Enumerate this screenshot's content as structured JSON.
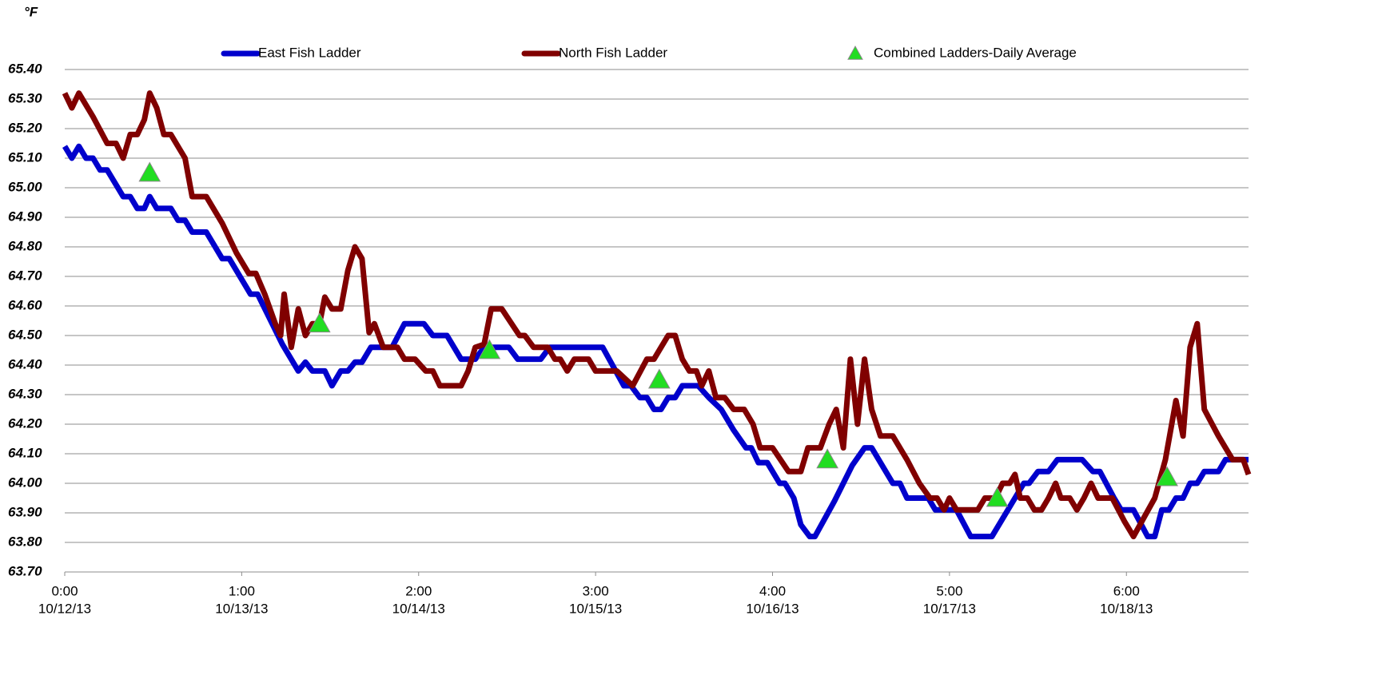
{
  "chart_data": {
    "type": "line",
    "unit_label": "°F",
    "xlim": [
      0,
      6.69
    ],
    "ylim": [
      63.7,
      65.4
    ],
    "grid": true,
    "legend": "top",
    "xticks": [
      {
        "value": 0,
        "label": "0:00"
      },
      {
        "value": 1,
        "label": "1:00"
      },
      {
        "value": 2,
        "label": "2:00"
      },
      {
        "value": 3,
        "label": "3:00"
      },
      {
        "value": 4,
        "label": "4:00"
      },
      {
        "value": 5,
        "label": "5:00"
      },
      {
        "value": 6,
        "label": "6:00"
      }
    ],
    "xtick_dates": [
      "10/12/13",
      "10/13/13",
      "10/14/13",
      "10/15/13",
      "10/16/13",
      "10/17/13",
      "10/18/13"
    ],
    "yticks": [
      {
        "value": 63.7,
        "label": "63.70"
      },
      {
        "value": 63.8,
        "label": "63.80"
      },
      {
        "value": 63.9,
        "label": "63.90"
      },
      {
        "value": 64.0,
        "label": "64.00"
      },
      {
        "value": 64.1,
        "label": "64.10"
      },
      {
        "value": 64.2,
        "label": "64.20"
      },
      {
        "value": 64.3,
        "label": "64.30"
      },
      {
        "value": 64.4,
        "label": "64.40"
      },
      {
        "value": 64.5,
        "label": "64.50"
      },
      {
        "value": 64.6,
        "label": "64.60"
      },
      {
        "value": 64.7,
        "label": "64.70"
      },
      {
        "value": 64.8,
        "label": "64.80"
      },
      {
        "value": 64.9,
        "label": "64.90"
      },
      {
        "value": 65.0,
        "label": "65.00"
      },
      {
        "value": 65.1,
        "label": "65.10"
      },
      {
        "value": 65.2,
        "label": "65.20"
      },
      {
        "value": 65.3,
        "label": "65.30"
      },
      {
        "value": 65.4,
        "label": "65.40"
      }
    ],
    "series": [
      {
        "name": "East Fish Ladder",
        "color": "#0000cc",
        "kind": "line",
        "x": [
          0,
          0.04,
          0.08,
          0.12,
          0.16,
          0.2,
          0.24,
          0.33,
          0.37,
          0.41,
          0.45,
          0.48,
          0.52,
          0.6,
          0.64,
          0.68,
          0.72,
          0.8,
          0.89,
          0.93,
          1.01,
          1.05,
          1.09,
          1.23,
          1.32,
          1.36,
          1.4,
          1.47,
          1.51,
          1.56,
          1.6,
          1.64,
          1.68,
          1.73,
          1.85,
          1.92,
          2.03,
          2.08,
          2.16,
          2.24,
          2.32,
          2.37,
          2.51,
          2.56,
          2.69,
          2.74,
          3.04,
          3.16,
          3.2,
          3.25,
          3.29,
          3.33,
          3.37,
          3.41,
          3.45,
          3.49,
          3.58,
          3.64,
          3.71,
          3.78,
          3.85,
          3.88,
          3.92,
          3.97,
          4.04,
          4.07,
          4.12,
          4.16,
          4.21,
          4.24,
          4.35,
          4.45,
          4.52,
          4.56,
          4.68,
          4.72,
          4.76,
          4.88,
          4.92,
          5.04,
          5.12,
          5.24,
          5.37,
          5.42,
          5.45,
          5.5,
          5.56,
          5.61,
          5.75,
          5.81,
          5.85,
          5.93,
          5.97,
          6.04,
          6.12,
          6.16,
          6.2,
          6.24,
          6.28,
          6.32,
          6.36,
          6.4,
          6.44,
          6.52,
          6.56,
          6.69
        ],
        "values": [
          65.14,
          65.1,
          65.14,
          65.1,
          65.1,
          65.06,
          65.06,
          64.97,
          64.97,
          64.93,
          64.93,
          64.97,
          64.93,
          64.93,
          64.89,
          64.89,
          64.85,
          64.85,
          64.76,
          64.76,
          64.68,
          64.64,
          64.64,
          64.47,
          64.38,
          64.41,
          64.38,
          64.38,
          64.33,
          64.38,
          64.38,
          64.41,
          64.41,
          64.46,
          64.46,
          64.54,
          64.54,
          64.5,
          64.5,
          64.42,
          64.42,
          64.46,
          64.46,
          64.42,
          64.42,
          64.46,
          64.46,
          64.33,
          64.33,
          64.29,
          64.29,
          64.25,
          64.25,
          64.29,
          64.29,
          64.33,
          64.33,
          64.29,
          64.25,
          64.18,
          64.12,
          64.12,
          64.07,
          64.07,
          64.0,
          64.0,
          63.95,
          63.86,
          63.82,
          63.82,
          63.94,
          64.06,
          64.12,
          64.12,
          64.0,
          64.0,
          63.95,
          63.95,
          63.91,
          63.91,
          63.82,
          63.82,
          63.95,
          64.0,
          64.0,
          64.04,
          64.04,
          64.08,
          64.08,
          64.04,
          64.04,
          63.95,
          63.91,
          63.91,
          63.82,
          63.82,
          63.91,
          63.91,
          63.95,
          63.95,
          64.0,
          64.0,
          64.04,
          64.04,
          64.08,
          64.08
        ]
      },
      {
        "name": "North Fish Ladder",
        "color": "#800000",
        "kind": "line",
        "x": [
          0,
          0.04,
          0.08,
          0.16,
          0.24,
          0.29,
          0.33,
          0.37,
          0.41,
          0.45,
          0.48,
          0.52,
          0.56,
          0.6,
          0.68,
          0.72,
          0.8,
          0.89,
          0.97,
          1.04,
          1.08,
          1.13,
          1.19,
          1.22,
          1.24,
          1.28,
          1.32,
          1.36,
          1.4,
          1.44,
          1.47,
          1.51,
          1.56,
          1.6,
          1.64,
          1.68,
          1.72,
          1.75,
          1.8,
          1.88,
          1.92,
          1.98,
          2.04,
          2.08,
          2.12,
          2.24,
          2.28,
          2.32,
          2.37,
          2.41,
          2.47,
          2.57,
          2.6,
          2.65,
          2.73,
          2.77,
          2.8,
          2.84,
          2.88,
          2.96,
          3.0,
          3.12,
          3.21,
          3.29,
          3.33,
          3.37,
          3.41,
          3.45,
          3.49,
          3.53,
          3.57,
          3.6,
          3.64,
          3.68,
          3.73,
          3.78,
          3.84,
          3.89,
          3.93,
          4.0,
          4.09,
          4.16,
          4.2,
          4.27,
          4.32,
          4.36,
          4.4,
          4.44,
          4.48,
          4.52,
          4.56,
          4.61,
          4.68,
          4.76,
          4.83,
          4.89,
          4.93,
          4.97,
          5.0,
          5.04,
          5.16,
          5.2,
          5.26,
          5.3,
          5.34,
          5.37,
          5.4,
          5.44,
          5.48,
          5.52,
          5.56,
          5.6,
          5.63,
          5.68,
          5.72,
          5.76,
          5.8,
          5.84,
          5.92,
          5.99,
          6.04,
          6.16,
          6.22,
          6.28,
          6.32,
          6.36,
          6.4,
          6.44,
          6.52,
          6.6,
          6.66,
          6.69
        ],
        "values": [
          65.32,
          65.27,
          65.32,
          65.24,
          65.15,
          65.15,
          65.1,
          65.18,
          65.18,
          65.23,
          65.32,
          65.27,
          65.18,
          65.18,
          65.1,
          64.97,
          64.97,
          64.88,
          64.78,
          64.71,
          64.71,
          64.64,
          64.54,
          64.5,
          64.64,
          64.46,
          64.59,
          64.5,
          64.54,
          64.54,
          64.63,
          64.59,
          64.59,
          64.72,
          64.8,
          64.76,
          64.51,
          64.54,
          64.46,
          64.46,
          64.42,
          64.42,
          64.38,
          64.38,
          64.33,
          64.33,
          64.38,
          64.46,
          64.47,
          64.59,
          64.59,
          64.5,
          64.5,
          64.46,
          64.46,
          64.42,
          64.42,
          64.38,
          64.42,
          64.42,
          64.38,
          64.38,
          64.33,
          64.42,
          64.42,
          64.46,
          64.5,
          64.5,
          64.42,
          64.38,
          64.38,
          64.33,
          64.38,
          64.29,
          64.29,
          64.25,
          64.25,
          64.2,
          64.12,
          64.12,
          64.04,
          64.04,
          64.12,
          64.12,
          64.2,
          64.25,
          64.12,
          64.42,
          64.2,
          64.42,
          64.25,
          64.16,
          64.16,
          64.08,
          64.0,
          63.95,
          63.95,
          63.91,
          63.95,
          63.91,
          63.91,
          63.95,
          63.95,
          64.0,
          64.0,
          64.03,
          63.95,
          63.95,
          63.91,
          63.91,
          63.95,
          64.0,
          63.95,
          63.95,
          63.91,
          63.95,
          64.0,
          63.95,
          63.95,
          63.87,
          63.82,
          63.95,
          64.08,
          64.28,
          64.16,
          64.46,
          64.54,
          64.25,
          64.16,
          64.08,
          64.08,
          64.03
        ]
      },
      {
        "name": "Combined Ladders-Daily Average",
        "color": "#22dd22",
        "kind": "marker",
        "x": [
          0.48,
          1.44,
          2.4,
          3.36,
          4.31,
          5.27,
          6.23
        ],
        "values": [
          65.05,
          64.54,
          64.45,
          64.35,
          64.08,
          63.95,
          64.02
        ]
      }
    ]
  }
}
